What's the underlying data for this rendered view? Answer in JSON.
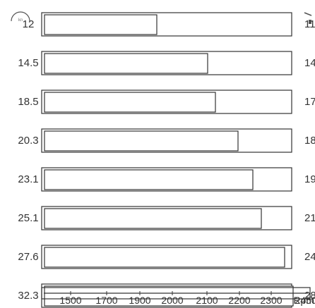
{
  "badge": {
    "label": "kn",
    "icon": "speedometer-icon"
  },
  "corner_icon": "corner-mark-icon",
  "colors": {
    "frame": "#333333",
    "text": "#333333"
  },
  "chart_data": {
    "type": "bar",
    "orientation": "horizontal",
    "rows": [
      {
        "left": "12",
        "right": "11"
      },
      {
        "left": "14.5",
        "right": "14"
      },
      {
        "left": "18.5",
        "right": "17"
      },
      {
        "left": "20.3",
        "right": "18"
      },
      {
        "left": "23.1",
        "right": "19"
      },
      {
        "left": "25.1",
        "right": "21"
      },
      {
        "left": "27.6",
        "right": "24"
      },
      {
        "left": "32.3",
        "right": "28"
      }
    ],
    "x_ticks": [
      "1500",
      "1700",
      "1900",
      "2000",
      "2100",
      "2200",
      "2300",
      "2450"
    ],
    "x_unit": "Rpm",
    "grid": false,
    "legend": "none"
  }
}
